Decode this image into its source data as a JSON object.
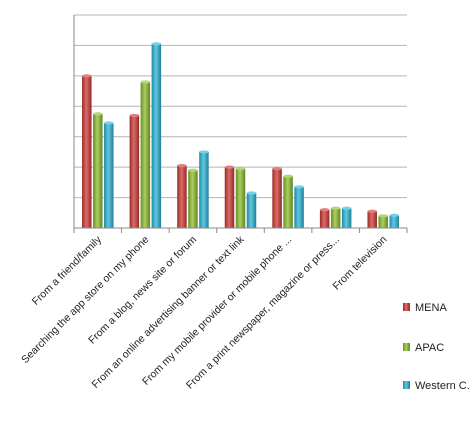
{
  "chart_data": {
    "type": "bar",
    "title": "",
    "xlabel": "",
    "ylabel": "",
    "ylim": [
      0,
      7
    ],
    "grid": true,
    "legend_position": "right",
    "categories": [
      "From a friend/family",
      "Searching the app store on my phone",
      "From a blog, news site or forum",
      "From an online advertising banner or text link",
      "From my mobile provider or mobile phone ...",
      "From a print newspaper, magazine  or press...",
      "From television"
    ],
    "series": [
      {
        "name": "MENA",
        "color": "#d03a36",
        "values": [
          5.0,
          3.7,
          2.05,
          2.0,
          1.95,
          0.6,
          0.55
        ]
      },
      {
        "name": "APAC",
        "color": "#8cbf2e",
        "values": [
          3.75,
          4.8,
          1.9,
          1.95,
          1.7,
          0.65,
          0.4
        ]
      },
      {
        "name": "Western C.",
        "color": "#2cb6d8",
        "values": [
          3.45,
          6.05,
          2.5,
          1.15,
          1.35,
          0.65,
          0.42
        ]
      }
    ]
  }
}
